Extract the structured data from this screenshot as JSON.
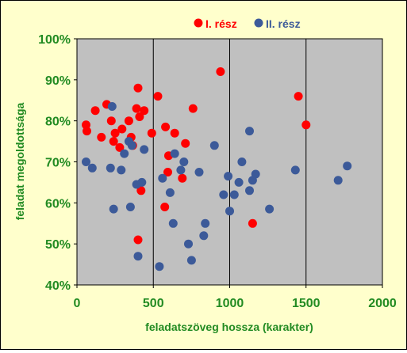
{
  "chart_data": {
    "type": "scatter",
    "xlabel": "feladatszöveg hossza (karakter)",
    "ylabel": "feladat megoldottsága",
    "xlim": [
      0,
      2000
    ],
    "ylim": [
      40,
      100
    ],
    "x_ticks": [
      "0",
      "500",
      "1000",
      "1500",
      "2000"
    ],
    "y_ticks": [
      "40%",
      "50%",
      "60%",
      "70%",
      "80%",
      "90%",
      "100%"
    ],
    "grid": "vertical",
    "legend": "top",
    "colors": {
      "plot_bg": "#c0c0c0",
      "frame_bg": "#ffffcc",
      "label_green": "#228b22",
      "series_red": "#ff0000",
      "series_blue": "#3c5a99"
    },
    "series": [
      {
        "name": "I. rész",
        "color": "#ff0000",
        "points": [
          [
            60,
            79
          ],
          [
            65,
            77.5
          ],
          [
            120,
            82.5
          ],
          [
            160,
            76
          ],
          [
            195,
            84
          ],
          [
            225,
            80
          ],
          [
            240,
            75
          ],
          [
            250,
            77
          ],
          [
            280,
            73.5
          ],
          [
            295,
            78
          ],
          [
            340,
            80
          ],
          [
            355,
            76
          ],
          [
            365,
            74
          ],
          [
            390,
            83
          ],
          [
            400,
            88
          ],
          [
            410,
            81
          ],
          [
            420,
            63
          ],
          [
            440,
            82.5
          ],
          [
            490,
            77
          ],
          [
            530,
            86
          ],
          [
            575,
            59
          ],
          [
            580,
            78.5
          ],
          [
            595,
            67.5
          ],
          [
            600,
            71.5
          ],
          [
            640,
            77
          ],
          [
            690,
            66
          ],
          [
            710,
            74.5
          ],
          [
            760,
            83
          ],
          [
            940,
            92
          ],
          [
            1150,
            55
          ],
          [
            1450,
            86
          ],
          [
            1500,
            79
          ],
          [
            400,
            51
          ]
        ]
      },
      {
        "name": "II. rész",
        "color": "#3c5a99",
        "points": [
          [
            60,
            70
          ],
          [
            100,
            68.5
          ],
          [
            220,
            68.5
          ],
          [
            230,
            83.5
          ],
          [
            240,
            58.5
          ],
          [
            290,
            68
          ],
          [
            310,
            72
          ],
          [
            340,
            75
          ],
          [
            350,
            59
          ],
          [
            360,
            74
          ],
          [
            390,
            64.5
          ],
          [
            400,
            47
          ],
          [
            425,
            65
          ],
          [
            440,
            73
          ],
          [
            540,
            44.5
          ],
          [
            560,
            66
          ],
          [
            610,
            62.5
          ],
          [
            630,
            55
          ],
          [
            640,
            72
          ],
          [
            680,
            68
          ],
          [
            700,
            70
          ],
          [
            730,
            50
          ],
          [
            750,
            46
          ],
          [
            800,
            67.5
          ],
          [
            830,
            52
          ],
          [
            840,
            55
          ],
          [
            900,
            74
          ],
          [
            960,
            62
          ],
          [
            990,
            66.5
          ],
          [
            1000,
            58
          ],
          [
            1030,
            62
          ],
          [
            1060,
            65
          ],
          [
            1080,
            70
          ],
          [
            1130,
            77.5
          ],
          [
            1130,
            63
          ],
          [
            1150,
            65.5
          ],
          [
            1170,
            67
          ],
          [
            1260,
            58.5
          ],
          [
            1430,
            68
          ],
          [
            1710,
            65.5
          ],
          [
            1770,
            69
          ]
        ]
      }
    ]
  }
}
